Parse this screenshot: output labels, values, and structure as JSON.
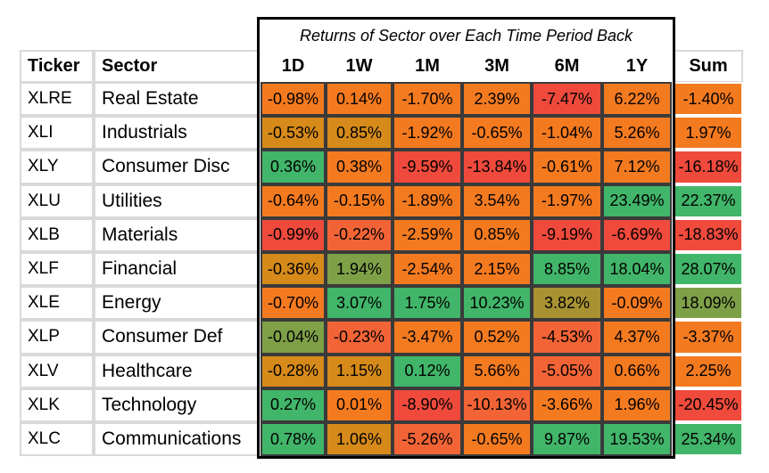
{
  "chart_data": {
    "type": "table",
    "title": "Returns of Sector over Each Time Period Back",
    "headers": {
      "ticker": "Ticker",
      "sector": "Sector",
      "sum": "Sum"
    },
    "periods": [
      "1D",
      "1W",
      "1M",
      "3M",
      "6M",
      "1Y"
    ],
    "rows": [
      {
        "ticker": "XLRE",
        "sector": "Real Estate",
        "values": [
          "-0.98%",
          "0.14%",
          "-1.70%",
          "2.39%",
          "-7.47%",
          "6.22%"
        ],
        "sum": "-1.40%"
      },
      {
        "ticker": "XLI",
        "sector": "Industrials",
        "values": [
          "-0.53%",
          "0.85%",
          "-1.92%",
          "-0.65%",
          "-1.04%",
          "5.26%"
        ],
        "sum": "1.97%"
      },
      {
        "ticker": "XLY",
        "sector": "Consumer Disc",
        "values": [
          "0.36%",
          "0.38%",
          "-9.59%",
          "-13.84%",
          "-0.61%",
          "7.12%"
        ],
        "sum": "-16.18%"
      },
      {
        "ticker": "XLU",
        "sector": "Utilities",
        "values": [
          "-0.64%",
          "-0.15%",
          "-1.89%",
          "3.54%",
          "-1.97%",
          "23.49%"
        ],
        "sum": "22.37%"
      },
      {
        "ticker": "XLB",
        "sector": "Materials",
        "values": [
          "-0.99%",
          "-0.22%",
          "-2.59%",
          "0.85%",
          "-9.19%",
          "-6.69%"
        ],
        "sum": "-18.83%"
      },
      {
        "ticker": "XLF",
        "sector": "Financial",
        "values": [
          "-0.36%",
          "1.94%",
          "-2.54%",
          "2.15%",
          "8.85%",
          "18.04%"
        ],
        "sum": "28.07%"
      },
      {
        "ticker": "XLE",
        "sector": "Energy",
        "values": [
          "-0.70%",
          "3.07%",
          "1.75%",
          "10.23%",
          "3.82%",
          "-0.09%"
        ],
        "sum": "18.09%"
      },
      {
        "ticker": "XLP",
        "sector": "Consumer Def",
        "values": [
          "-0.04%",
          "-0.23%",
          "-3.47%",
          "0.52%",
          "-4.53%",
          "4.37%"
        ],
        "sum": "-3.37%"
      },
      {
        "ticker": "XLV",
        "sector": "Healthcare",
        "values": [
          "-0.28%",
          "1.15%",
          "0.12%",
          "5.66%",
          "-5.05%",
          "0.66%"
        ],
        "sum": "2.25%"
      },
      {
        "ticker": "XLK",
        "sector": "Technology",
        "values": [
          "0.27%",
          "0.01%",
          "-8.90%",
          "-10.13%",
          "-3.66%",
          "1.96%"
        ],
        "sum": "-20.45%"
      },
      {
        "ticker": "XLC",
        "sector": "Communications",
        "values": [
          "0.78%",
          "1.06%",
          "-5.26%",
          "-0.65%",
          "9.87%",
          "19.53%"
        ],
        "sum": "25.34%"
      }
    ],
    "colors": {
      "red": "#ef4a3c",
      "red_orange": "#f26436",
      "orange": "#f47a20",
      "olive_orange": "#d58a1a",
      "olive": "#a89232",
      "green_olive": "#7ea047",
      "green": "#41b569",
      "bright_green": "#1ed57c"
    },
    "cell_colors": [
      [
        "orange",
        "orange",
        "orange",
        "orange",
        "red",
        "orange"
      ],
      [
        "olive_orange",
        "olive_orange",
        "orange",
        "orange",
        "orange",
        "orange"
      ],
      [
        "green",
        "orange",
        "red",
        "red",
        "orange",
        "orange"
      ],
      [
        "orange",
        "orange",
        "orange",
        "orange",
        "orange",
        "green"
      ],
      [
        "red",
        "red_orange",
        "orange",
        "orange",
        "red",
        "red"
      ],
      [
        "olive_orange",
        "green_olive",
        "orange",
        "orange",
        "green",
        "green"
      ],
      [
        "orange",
        "green",
        "green",
        "green",
        "olive",
        "orange"
      ],
      [
        "green_olive",
        "red_orange",
        "orange",
        "orange",
        "red_orange",
        "orange"
      ],
      [
        "olive_orange",
        "olive_orange",
        "green",
        "orange",
        "red_orange",
        "orange"
      ],
      [
        "green",
        "orange",
        "red",
        "red_orange",
        "orange",
        "orange"
      ],
      [
        "green",
        "olive_orange",
        "red_orange",
        "orange",
        "green",
        "green"
      ]
    ],
    "sum_colors": [
      "orange",
      "orange",
      "red",
      "green",
      "red",
      "green",
      "green_olive",
      "orange",
      "orange",
      "red",
      "green"
    ]
  }
}
